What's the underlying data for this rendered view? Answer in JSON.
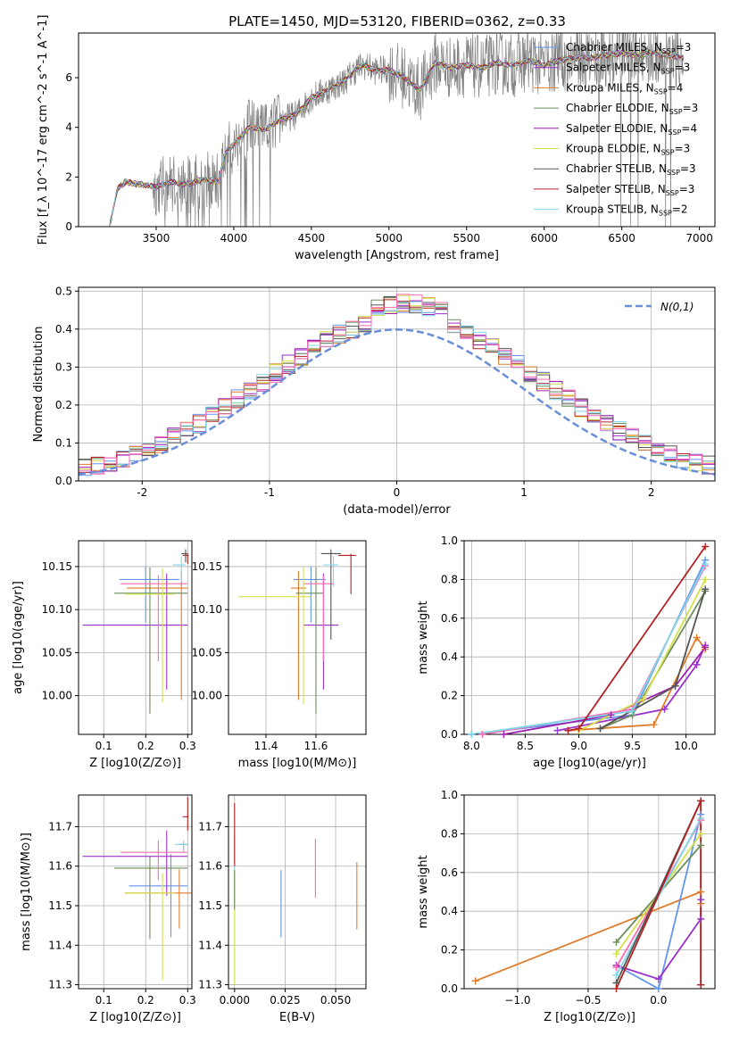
{
  "figure": {
    "title": "PLATE=1450, MJD=53120, FIBERID=0362, z=0.33"
  },
  "legend_entries": [
    {
      "label": "Chabrier MILES, N",
      "sub": "SSP",
      "suffix": "=3",
      "color": "#6495ed"
    },
    {
      "label": "Salpeter MILES, N",
      "sub": "SSP",
      "suffix": "=3",
      "color": "#9932cc"
    },
    {
      "label": "Kroupa MILES, N",
      "sub": "SSP",
      "suffix": "=4",
      "color": "#e07b28"
    },
    {
      "label": "Chabrier ELODIE, N",
      "sub": "SSP",
      "suffix": "=3",
      "color": "#6b8e5a"
    },
    {
      "label": "Salpeter ELODIE, N",
      "sub": "SSP",
      "suffix": "=4",
      "color": "#a020b0"
    },
    {
      "label": "Kroupa ELODIE, N",
      "sub": "SSP",
      "suffix": "=3",
      "color": "#d4e04a"
    },
    {
      "label": "Chabrier STELIB, N",
      "sub": "SSP",
      "suffix": "=3",
      "color": "#555555"
    },
    {
      "label": "Salpeter STELIB, N",
      "sub": "SSP",
      "suffix": "=3",
      "color": "#b22222"
    },
    {
      "label": "Kroupa STELIB, N",
      "sub": "SSP",
      "suffix": "=2",
      "color": "#7fd8e8"
    }
  ],
  "chart_data": [
    {
      "id": "spectrum",
      "type": "line",
      "xlabel": "wavelength [Angstrom, rest frame]",
      "ylabel": "Flux [f_λ 10^-17 erg cm^-2 s^-1 A^-1]",
      "xlim": [
        3000,
        7100
      ],
      "ylim": [
        0,
        7.8
      ],
      "xticks": [
        3500,
        4000,
        4500,
        5000,
        5500,
        6000,
        6500,
        7000
      ],
      "yticks": [
        0,
        2,
        4,
        6
      ],
      "data_color": "#808080",
      "model_shape": {
        "x": [
          3200,
          3250,
          3300,
          3400,
          3500,
          3600,
          3700,
          3800,
          3900,
          3950,
          4000,
          4100,
          4200,
          4300,
          4400,
          4500,
          4600,
          4700,
          4800,
          4850,
          4900,
          5000,
          5100,
          5200,
          5300,
          5400,
          5500,
          5600,
          5700,
          5800,
          5900,
          6000,
          6100,
          6200,
          6300,
          6400,
          6500,
          6600,
          6700,
          6800,
          6900
        ],
        "y": [
          0,
          1.5,
          1.8,
          1.7,
          1.6,
          1.8,
          1.7,
          1.9,
          1.8,
          3.0,
          3.3,
          4.0,
          3.9,
          4.3,
          4.5,
          5.2,
          5.5,
          5.8,
          6.4,
          6.5,
          6.3,
          6.3,
          6.0,
          5.5,
          6.6,
          6.4,
          6.5,
          6.4,
          6.6,
          6.5,
          6.7,
          6.5,
          6.7,
          6.8,
          6.8,
          6.9,
          7.0,
          6.9,
          7.0,
          6.9,
          6.8
        ]
      }
    },
    {
      "id": "residuals",
      "type": "line",
      "xlabel": "(data-model)/error",
      "ylabel": "Normed distribution",
      "xlim": [
        -2.5,
        2.5
      ],
      "ylim": [
        0,
        0.51
      ],
      "xticks": [
        -2,
        -1,
        0,
        1,
        2
      ],
      "yticks": [
        0.0,
        0.1,
        0.2,
        0.3,
        0.4,
        0.5
      ],
      "legend": "N(0,1)",
      "legend_color": "#6a8fd8",
      "bin_width": 0.1
    },
    {
      "id": "age_vs_Z",
      "type": "scatter",
      "xlabel": "Z [log10(Z/Z⊙)]",
      "ylabel": "age  [log10(age/yr)]",
      "xlim": [
        0.04,
        0.31
      ],
      "ylim": [
        9.955,
        10.18
      ],
      "xticks": [
        0.1,
        0.2,
        0.3
      ],
      "yticks": [
        10.0,
        10.05,
        10.1,
        10.15
      ],
      "points": [
        {
          "color": "#6495ed",
          "x": 0.2,
          "xerr": [
            0.063,
            0.08
          ],
          "y": 10.135,
          "yerr": [
            0.05,
            0.015
          ]
        },
        {
          "color": "#9932cc",
          "x": 0.25,
          "xerr": [
            0.2,
            0.05
          ],
          "y": 10.082,
          "yerr": [
            0.075,
            0.06
          ]
        },
        {
          "color": "#e07b28",
          "x": 0.285,
          "xerr": [
            0.13,
            0.015
          ],
          "y": 10.125,
          "yerr": [
            0.13,
            0.02
          ]
        },
        {
          "color": "#6b8e5a",
          "x": 0.21,
          "xerr": [
            0.085,
            0.09
          ],
          "y": 10.119,
          "yerr": [
            0.14,
            0.03
          ]
        },
        {
          "color": "#ff69b4",
          "x": 0.23,
          "xerr": [
            0.09,
            0.07
          ],
          "y": 10.13,
          "yerr": [
            0.09,
            0.01
          ]
        },
        {
          "color": "#d4e04a",
          "x": 0.24,
          "xerr": [
            0.09,
            0.03
          ],
          "y": 10.118,
          "yerr": [
            0.125,
            0.03
          ]
        },
        {
          "color": "#555555",
          "x": 0.295,
          "xerr": [
            0.01,
            0.005
          ],
          "y": 10.165,
          "yerr": [
            0.01,
            0.005
          ]
        },
        {
          "color": "#b22222",
          "x": 0.3,
          "xerr": [
            0.012,
            0.002
          ],
          "y": 10.163,
          "yerr": [
            0.01,
            0.002
          ]
        },
        {
          "color": "#7fd8e8",
          "x": 0.285,
          "xerr": [
            0.02,
            0.01
          ],
          "y": 10.152,
          "yerr": [
            0.02,
            0.01
          ]
        }
      ]
    },
    {
      "id": "age_vs_mass",
      "type": "scatter",
      "xlabel": "mass [log10(M/M⊙)]",
      "ylabel": "",
      "xlim": [
        11.25,
        11.8
      ],
      "ylim": [
        9.955,
        10.18
      ],
      "xticks": [
        11.4,
        11.6
      ],
      "yticks": [
        10.0,
        10.05,
        10.1,
        10.15
      ],
      "points": [
        {
          "color": "#6495ed",
          "x": 11.58,
          "xerr": [
            0.07,
            0.06
          ],
          "y": 10.135,
          "yerr": [
            0.05,
            0.015
          ]
        },
        {
          "color": "#9932cc",
          "x": 11.63,
          "xerr": [
            0.08,
            0.06
          ],
          "y": 10.082,
          "yerr": [
            0.075,
            0.06
          ]
        },
        {
          "color": "#e07b28",
          "x": 11.53,
          "xerr": [
            0.03,
            0.03
          ],
          "y": 10.125,
          "yerr": [
            0.13,
            0.02
          ]
        },
        {
          "color": "#6b8e5a",
          "x": 11.6,
          "xerr": [
            0.08,
            0.03
          ],
          "y": 10.119,
          "yerr": [
            0.14,
            0.03
          ]
        },
        {
          "color": "#ff69b4",
          "x": 11.63,
          "xerr": [
            0.08,
            0.04
          ],
          "y": 10.13,
          "yerr": [
            0.09,
            0.01
          ]
        },
        {
          "color": "#d4e04a",
          "x": 11.55,
          "xerr": [
            0.26,
            0.03
          ],
          "y": 10.115,
          "yerr": [
            0.125,
            0.035
          ]
        },
        {
          "color": "#555555",
          "x": 11.66,
          "xerr": [
            0.04,
            0.04
          ],
          "y": 10.165,
          "yerr": [
            0.1,
            0.005
          ]
        },
        {
          "color": "#b22222",
          "x": 11.74,
          "xerr": [
            0.05,
            0.02
          ],
          "y": 10.163,
          "yerr": [
            0.045,
            0.002
          ]
        },
        {
          "color": "#7fd8e8",
          "x": 11.67,
          "xerr": [
            0.04,
            0.02
          ],
          "y": 10.152,
          "yerr": [
            0.025,
            0.01
          ]
        }
      ]
    },
    {
      "id": "mass_weight_vs_age",
      "type": "line",
      "xlabel": "age  [log10(age/yr)]",
      "ylabel": "mass weight",
      "xlim": [
        7.93,
        10.27
      ],
      "ylim": [
        0,
        1.0
      ],
      "xticks": [
        8.0,
        8.5,
        9.0,
        9.5,
        10.0
      ],
      "yticks": [
        0.0,
        0.2,
        0.4,
        0.6,
        0.8,
        1.0
      ],
      "series": [
        {
          "color": "#6495ed",
          "x": [
            8.0,
            9.5,
            10.18
          ],
          "y": [
            0.0,
            0.1,
            0.9
          ]
        },
        {
          "color": "#9932cc",
          "x": [
            8.8,
            9.8,
            10.1,
            10.18
          ],
          "y": [
            0.02,
            0.13,
            0.36,
            0.46
          ]
        },
        {
          "color": "#e07b28",
          "x": [
            8.9,
            9.7,
            10.1,
            10.18
          ],
          "y": [
            0.02,
            0.05,
            0.5,
            0.44
          ]
        },
        {
          "color": "#6b8e5a",
          "x": [
            9.2,
            9.5,
            10.18
          ],
          "y": [
            0.03,
            0.1,
            0.74
          ]
        },
        {
          "color": "#a020b0",
          "x": [
            8.3,
            9.3,
            9.9,
            10.18
          ],
          "y": [
            0.0,
            0.1,
            0.25,
            0.45
          ]
        },
        {
          "color": "#d4e04a",
          "x": [
            9.0,
            9.6,
            10.18
          ],
          "y": [
            0.02,
            0.18,
            0.8
          ]
        },
        {
          "color": "#555555",
          "x": [
            9.2,
            9.9,
            10.18
          ],
          "y": [
            0.03,
            0.25,
            0.75
          ]
        },
        {
          "color": "#ff69b4",
          "x": [
            8.1,
            9.5,
            10.18
          ],
          "y": [
            0.0,
            0.13,
            0.87
          ]
        },
        {
          "color": "#7fd8e8",
          "x": [
            8.0,
            9.5,
            10.18
          ],
          "y": [
            0.0,
            0.12,
            0.88
          ]
        },
        {
          "color": "#b22222",
          "x": [
            8.9,
            9.0,
            10.18
          ],
          "y": [
            0.02,
            0.03,
            0.97
          ]
        }
      ]
    },
    {
      "id": "mass_vs_Z",
      "type": "scatter",
      "xlabel": "Z [log10(Z/Z⊙)]",
      "ylabel": "mass [log10(M/M⊙)]",
      "xlim": [
        0.04,
        0.31
      ],
      "ylim": [
        11.29,
        11.78
      ],
      "xticks": [
        0.1,
        0.2,
        0.3
      ],
      "yticks": [
        11.3,
        11.4,
        11.5,
        11.6,
        11.7
      ],
      "points": [
        {
          "color": "#6495ed",
          "x": 0.26,
          "xerr": [
            0.1,
            0.04
          ],
          "y": 11.55,
          "yerr": [
            0.13,
            0.08
          ]
        },
        {
          "color": "#9932cc",
          "x": 0.25,
          "xerr": [
            0.2,
            0.05
          ],
          "y": 11.625,
          "yerr": [
            0.1,
            0.065
          ]
        },
        {
          "color": "#e07b28",
          "x": 0.28,
          "xerr": [
            0.13,
            0.03
          ],
          "y": 11.532,
          "yerr": [
            0.09,
            0.06
          ]
        },
        {
          "color": "#6b8e5a",
          "x": 0.21,
          "xerr": [
            0.085,
            0.09
          ],
          "y": 11.595,
          "yerr": [
            0.18,
            0.03
          ]
        },
        {
          "color": "#ff69b4",
          "x": 0.23,
          "xerr": [
            0.09,
            0.07
          ],
          "y": 11.635,
          "yerr": [
            0.07,
            0.03
          ]
        },
        {
          "color": "#d4e04a",
          "x": 0.24,
          "xerr": [
            0.09,
            0.03
          ],
          "y": 11.532,
          "yerr": [
            0.22,
            0.05
          ]
        },
        {
          "color": "#555555",
          "x": 0.29,
          "xerr": [
            0.01,
            0.01
          ],
          "y": 11.655,
          "yerr": [
            0.02,
            0.005
          ]
        },
        {
          "color": "#b22222",
          "x": 0.3,
          "xerr": [
            0.012,
            0.002
          ],
          "y": 11.725,
          "yerr": [
            0.035,
            0.05
          ]
        },
        {
          "color": "#7fd8e8",
          "x": 0.29,
          "xerr": [
            0.02,
            0.01
          ],
          "y": 11.655,
          "yerr": [
            0.02,
            0.01
          ]
        }
      ]
    },
    {
      "id": "mass_vs_ebv",
      "type": "scatter",
      "xlabel": "E(B-V)",
      "ylabel": "",
      "xlim": [
        -0.003,
        0.065
      ],
      "ylim": [
        11.29,
        11.78
      ],
      "xticks": [
        0.0,
        0.025,
        0.05
      ],
      "yticks": [
        11.3,
        11.4,
        11.5,
        11.6,
        11.7
      ],
      "points": [
        {
          "color": "#6495ed",
          "x": 0.023,
          "y": 11.55,
          "yerr": [
            0.13,
            0.04
          ]
        },
        {
          "color": "#ff69b4",
          "x": 0.04,
          "y": 11.6,
          "yerr": [
            0.08,
            0.07
          ]
        },
        {
          "color": "#e07b28",
          "x": 0.0605,
          "y": 11.53,
          "yerr": [
            0.09,
            0.08
          ]
        },
        {
          "color": "#d4e04a",
          "x": 0.0,
          "y": 11.45,
          "yerr": [
            0.15,
            0.13
          ]
        },
        {
          "color": "#7fd8e8",
          "x": 0.0,
          "y": 11.63,
          "yerr": [
            0.05,
            0.05
          ]
        },
        {
          "color": "#b22222",
          "x": 0.0,
          "y": 11.66,
          "yerr": [
            0.06,
            0.1
          ]
        },
        {
          "color": "#6b8e5a",
          "x": 0.0,
          "y": 11.55,
          "yerr": [
            0.06,
            0.04
          ]
        }
      ]
    },
    {
      "id": "mass_weight_vs_Z",
      "type": "line",
      "xlabel": "Z [log10(Z/Z⊙)]",
      "ylabel": "mass weight",
      "xlim": [
        -1.38,
        0.4
      ],
      "ylim": [
        0,
        1.0
      ],
      "xticks": [
        -1.0,
        -0.5,
        0.0
      ],
      "yticks": [
        0.0,
        0.2,
        0.4,
        0.6,
        0.8,
        1.0
      ],
      "series": [
        {
          "color": "#e07b28",
          "x": [
            -1.3,
            0.3,
            0.3
          ],
          "y": [
            0.04,
            0.5,
            0.44
          ]
        },
        {
          "color": "#6495ed",
          "x": [
            -0.3,
            0.0,
            0.3
          ],
          "y": [
            0.12,
            0.0,
            0.9
          ]
        },
        {
          "color": "#9932cc",
          "x": [
            -0.3,
            0.0,
            0.3,
            0.3
          ],
          "y": [
            0.12,
            0.05,
            0.36,
            0.46
          ]
        },
        {
          "color": "#6b8e5a",
          "x": [
            -0.3,
            0.3
          ],
          "y": [
            0.24,
            0.74
          ]
        },
        {
          "color": "#d4e04a",
          "x": [
            -0.3,
            0.3
          ],
          "y": [
            0.18,
            0.8
          ]
        },
        {
          "color": "#ff69b4",
          "x": [
            -0.3,
            0.3
          ],
          "y": [
            0.11,
            0.87
          ]
        },
        {
          "color": "#7fd8e8",
          "x": [
            -0.3,
            0.3
          ],
          "y": [
            0.07,
            0.88
          ]
        },
        {
          "color": "#555555",
          "x": [
            -0.3,
            0.3,
            0.3
          ],
          "y": [
            0.03,
            0.97,
            0.02
          ]
        },
        {
          "color": "#b22222",
          "x": [
            -0.3,
            0.3,
            0.3
          ],
          "y": [
            0.0,
            0.97,
            0.02
          ]
        }
      ]
    }
  ]
}
